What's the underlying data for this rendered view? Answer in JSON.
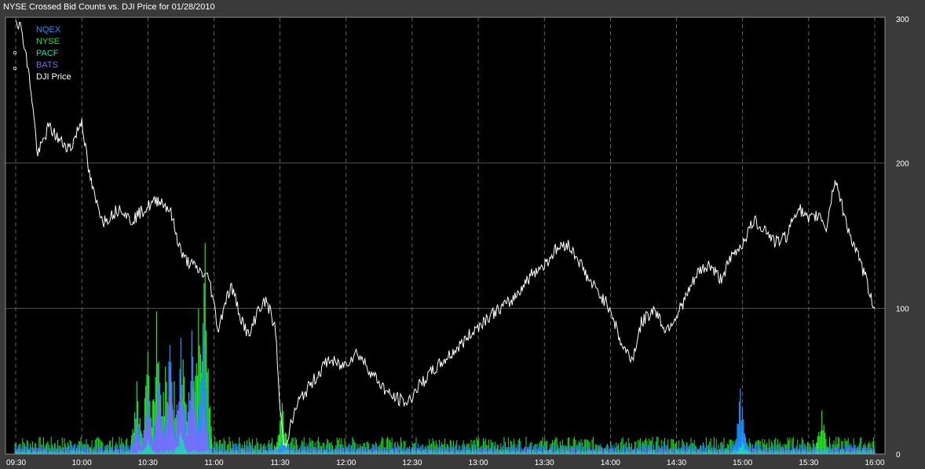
{
  "chart_data": {
    "type": "line",
    "title": "NYSE Crossed Bid Counts vs. DJI Price for 01/28/2010",
    "xlabel": "",
    "ylabel": "",
    "ylim": [
      0,
      300
    ],
    "y_ticks": [
      "0",
      "100",
      "200",
      "300"
    ],
    "x_ticks": [
      "09:30",
      "10:00",
      "10:30",
      "11:00",
      "11:30",
      "12:00",
      "12:30",
      "13:00",
      "13:30",
      "14:00",
      "14:30",
      "15:00",
      "15:30",
      "16:00"
    ],
    "grid": true,
    "legend_position": "top-left",
    "colors": {
      "NQEX": "#1e90ff",
      "NYSE": "#22e622",
      "PACF": "#1fd6b0",
      "BATS": "#7b6cff",
      "DJI Price": "#ffffff",
      "background": "#000000",
      "frame": "#3a3a3a",
      "grid": "#7a7a7a"
    },
    "series": [
      {
        "name": "NQEX",
        "type": "spikes",
        "x": [
          "10:25",
          "10:30",
          "10:35",
          "10:40",
          "10:45",
          "10:50",
          "10:55",
          "11:31",
          "14:59",
          "15:00",
          "15:01"
        ],
        "values": [
          30,
          45,
          60,
          75,
          80,
          85,
          90,
          10,
          45,
          20,
          12
        ],
        "baseline": 5
      },
      {
        "name": "NYSE",
        "type": "spikes",
        "x": [
          "10:25",
          "10:30",
          "10:34",
          "10:38",
          "10:42",
          "10:46",
          "10:50",
          "10:53",
          "10:56",
          "11:30",
          "11:31",
          "15:36"
        ],
        "values": [
          50,
          70,
          98,
          60,
          50,
          65,
          80,
          100,
          145,
          20,
          35,
          30
        ],
        "baseline": 8
      },
      {
        "name": "PACF",
        "type": "spikes",
        "x": [
          "10:30",
          "10:45",
          "15:00"
        ],
        "values": [
          10,
          15,
          8
        ],
        "baseline": 2
      },
      {
        "name": "BATS",
        "type": "spikes",
        "x": [
          "10:25",
          "10:30",
          "10:35",
          "10:40",
          "10:45",
          "10:50",
          "10:55"
        ],
        "values": [
          20,
          40,
          50,
          60,
          55,
          70,
          40
        ],
        "baseline": 3
      },
      {
        "name": "DJI Price",
        "type": "line",
        "x": [
          "09:30",
          "09:33",
          "09:37",
          "09:40",
          "09:45",
          "09:50",
          "09:55",
          "10:00",
          "10:03",
          "10:06",
          "10:10",
          "10:14",
          "10:18",
          "10:22",
          "10:26",
          "10:30",
          "10:35",
          "10:40",
          "10:43",
          "10:46",
          "10:50",
          "10:54",
          "10:58",
          "11:02",
          "11:05",
          "11:08",
          "11:12",
          "11:16",
          "11:20",
          "11:24",
          "11:28",
          "11:30",
          "11:32",
          "11:34",
          "11:38",
          "11:45",
          "11:52",
          "11:58",
          "12:05",
          "12:12",
          "12:20",
          "12:28",
          "12:32",
          "12:38",
          "12:45",
          "12:52",
          "12:58",
          "13:05",
          "13:10",
          "13:15",
          "13:20",
          "13:25",
          "13:30",
          "13:35",
          "13:40",
          "13:45",
          "13:50",
          "13:55",
          "14:00",
          "14:05",
          "14:10",
          "14:14",
          "14:20",
          "14:25",
          "14:30",
          "14:35",
          "14:40",
          "14:45",
          "14:50",
          "14:55",
          "15:00",
          "15:05",
          "15:10",
          "15:15",
          "15:20",
          "15:25",
          "15:30",
          "15:35",
          "15:38",
          "15:42",
          "15:46",
          "15:50",
          "15:55",
          "16:00"
        ],
        "values": [
          300,
          290,
          250,
          205,
          225,
          215,
          210,
          230,
          195,
          175,
          160,
          165,
          170,
          160,
          165,
          170,
          175,
          168,
          150,
          135,
          130,
          125,
          120,
          85,
          105,
          115,
          95,
          80,
          100,
          105,
          85,
          30,
          5,
          15,
          35,
          50,
          65,
          60,
          70,
          55,
          40,
          35,
          45,
          55,
          65,
          75,
          85,
          95,
          100,
          105,
          115,
          125,
          130,
          140,
          145,
          135,
          120,
          110,
          100,
          75,
          65,
          90,
          100,
          85,
          95,
          110,
          125,
          130,
          120,
          135,
          145,
          160,
          155,
          145,
          150,
          170,
          160,
          165,
          155,
          190,
          165,
          145,
          125,
          100
        ]
      }
    ]
  }
}
